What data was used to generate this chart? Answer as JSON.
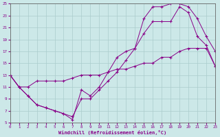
{
  "xlabel": "Windchill (Refroidissement éolien,°C)",
  "xlim": [
    0,
    23
  ],
  "ylim": [
    5,
    25
  ],
  "xticks": [
    0,
    1,
    2,
    3,
    4,
    5,
    6,
    7,
    8,
    9,
    10,
    11,
    12,
    13,
    14,
    15,
    16,
    17,
    18,
    19,
    20,
    21,
    22,
    23
  ],
  "yticks": [
    5,
    7,
    9,
    11,
    13,
    15,
    17,
    19,
    21,
    23,
    25
  ],
  "bg_color": "#cce8e8",
  "grid_color": "#aacccc",
  "line_color": "#880088",
  "line1_x": [
    0,
    1,
    2,
    3,
    4,
    5,
    6,
    7,
    8,
    9,
    10,
    11,
    12,
    13,
    14,
    15,
    16,
    17,
    18,
    19,
    20,
    21,
    22,
    23
  ],
  "line1_y": [
    13,
    11,
    11,
    12,
    12,
    12,
    12,
    12.5,
    13,
    13,
    13,
    13.5,
    14,
    14,
    14.5,
    15,
    15,
    16,
    16,
    17,
    17.5,
    17.5,
    17.5,
    14.5
  ],
  "line2_x": [
    0,
    1,
    2,
    3,
    4,
    5,
    6,
    7,
    8,
    9,
    10,
    11,
    12,
    13,
    14,
    15,
    16,
    17,
    18,
    19,
    20,
    21,
    22,
    23
  ],
  "line2_y": [
    13,
    11,
    9.5,
    8,
    7.5,
    7,
    6.5,
    5.5,
    10.5,
    9.5,
    11,
    13.5,
    16,
    17,
    17.5,
    20,
    22,
    22,
    22,
    24.5,
    23.5,
    19.5,
    18,
    14.5
  ],
  "line3_x": [
    0,
    1,
    2,
    3,
    4,
    5,
    6,
    7,
    8,
    9,
    10,
    11,
    12,
    13,
    14,
    15,
    16,
    17,
    18,
    19,
    20,
    21,
    22,
    23
  ],
  "line3_y": [
    13,
    11,
    9.5,
    8,
    7.5,
    7,
    6.5,
    6,
    9,
    9,
    10.5,
    12,
    13.5,
    15.5,
    17.5,
    22.5,
    24.5,
    24.5,
    25,
    25,
    24.5,
    22.5,
    19.5,
    17
  ]
}
